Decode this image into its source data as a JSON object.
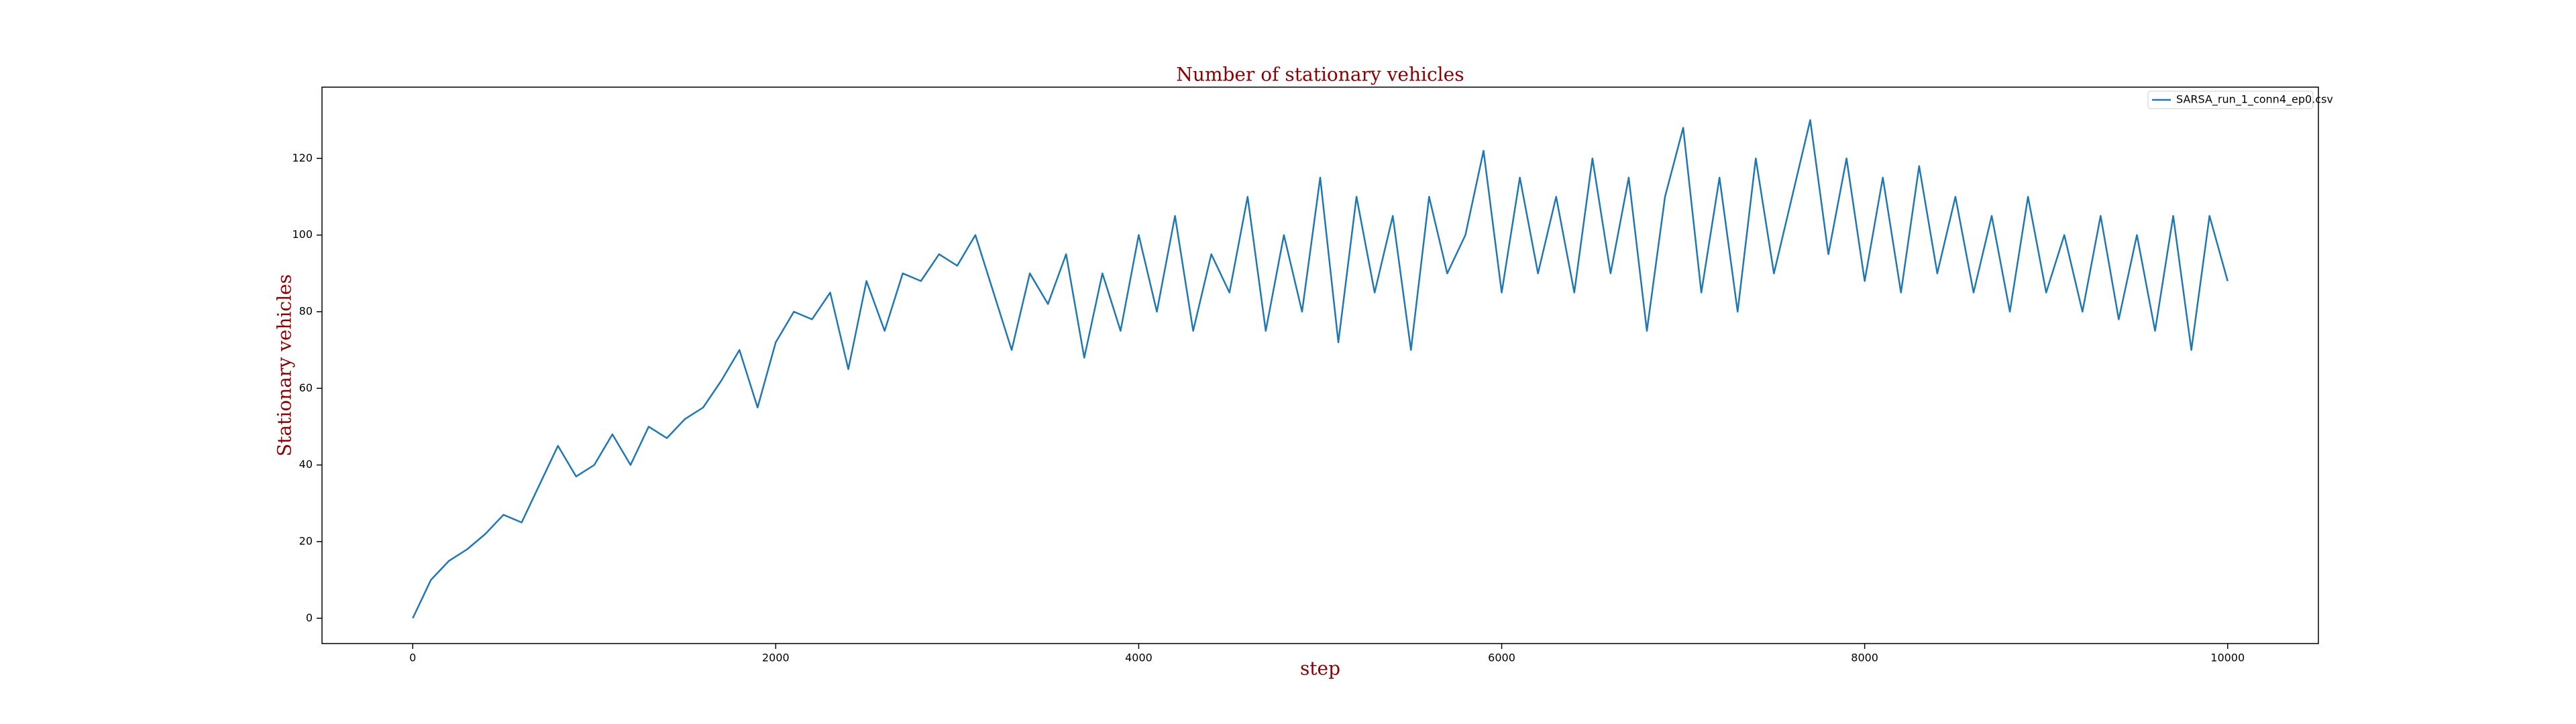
{
  "chart_data": {
    "type": "line",
    "title": "Number of stationary vehicles",
    "x_label": "step",
    "y_label": "Stationary vehicles",
    "x": [
      0,
      100,
      200,
      300,
      400,
      500,
      600,
      700,
      800,
      900,
      1000,
      1100,
      1200,
      1300,
      1400,
      1500,
      1600,
      1700,
      1800,
      1900,
      2000,
      2100,
      2200,
      2300,
      2400,
      2500,
      2600,
      2700,
      2800,
      2900,
      3000,
      3100,
      3200,
      3300,
      3400,
      3500,
      3600,
      3700,
      3800,
      3900,
      4000,
      4100,
      4200,
      4300,
      4400,
      4500,
      4600,
      4700,
      4800,
      4900,
      5000,
      5100,
      5200,
      5300,
      5400,
      5500,
      5600,
      5700,
      5800,
      5900,
      6000,
      6100,
      6200,
      6300,
      6400,
      6500,
      6600,
      6700,
      6800,
      6900,
      7000,
      7100,
      7200,
      7300,
      7400,
      7500,
      7600,
      7700,
      7800,
      7900,
      8000,
      8100,
      8200,
      8300,
      8400,
      8500,
      8600,
      8700,
      8800,
      8900,
      9000,
      9100,
      9200,
      9300,
      9400,
      9500,
      9600,
      9700,
      9800,
      9900,
      10000
    ],
    "series": [
      {
        "name": "SARSA_run_1_conn4_ep0.csv",
        "color": "#1f77b4",
        "values": [
          0,
          10,
          15,
          18,
          22,
          27,
          25,
          35,
          45,
          37,
          40,
          48,
          40,
          50,
          47,
          52,
          55,
          62,
          70,
          55,
          72,
          80,
          78,
          85,
          65,
          88,
          75,
          90,
          88,
          95,
          92,
          100,
          85,
          70,
          90,
          82,
          95,
          68,
          90,
          75,
          100,
          80,
          105,
          75,
          95,
          85,
          110,
          75,
          100,
          80,
          115,
          72,
          110,
          85,
          105,
          70,
          110,
          90,
          100,
          122,
          85,
          115,
          90,
          110,
          85,
          120,
          90,
          115,
          75,
          110,
          128,
          85,
          115,
          80,
          120,
          90,
          110,
          130,
          95,
          120,
          88,
          115,
          85,
          118,
          90,
          110,
          85,
          105,
          80,
          110,
          85,
          100,
          80,
          105,
          78,
          100,
          75,
          105,
          70,
          105,
          88
        ]
      }
    ],
    "xlim": [
      -500,
      10500
    ],
    "ylim": [
      -6.6,
      138.6
    ],
    "xticks": [
      0,
      2000,
      4000,
      6000,
      8000,
      10000
    ],
    "yticks": [
      0,
      20,
      40,
      60,
      80,
      100,
      120
    ],
    "legend": "upper right",
    "grid": false
  }
}
